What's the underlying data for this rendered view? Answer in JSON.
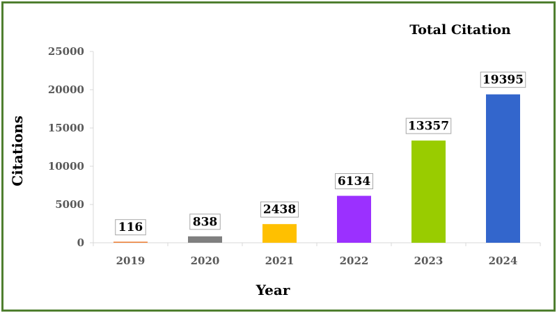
{
  "chart_data": {
    "type": "bar",
    "title": "Total Citation",
    "xlabel": "Year",
    "ylabel": "Citations",
    "categories": [
      "2019",
      "2020",
      "2021",
      "2022",
      "2023",
      "2024"
    ],
    "values": [
      116,
      838,
      2438,
      6134,
      13357,
      19395
    ],
    "value_labels": [
      "116",
      "838",
      "2438",
      "6134",
      "13357",
      "19395"
    ],
    "colors": [
      "#ed7d31",
      "#7f7f7f",
      "#ffc000",
      "#9b30ff",
      "#99cc00",
      "#3366cc"
    ],
    "ylim": [
      0,
      25000
    ],
    "yticks": [
      0,
      5000,
      10000,
      15000,
      20000,
      25000
    ],
    "ytick_labels": [
      "0",
      "5000",
      "10000",
      "15000",
      "20000",
      "25000"
    ],
    "grid": false,
    "legend": "none"
  },
  "frame_color": "#4f7f2f"
}
